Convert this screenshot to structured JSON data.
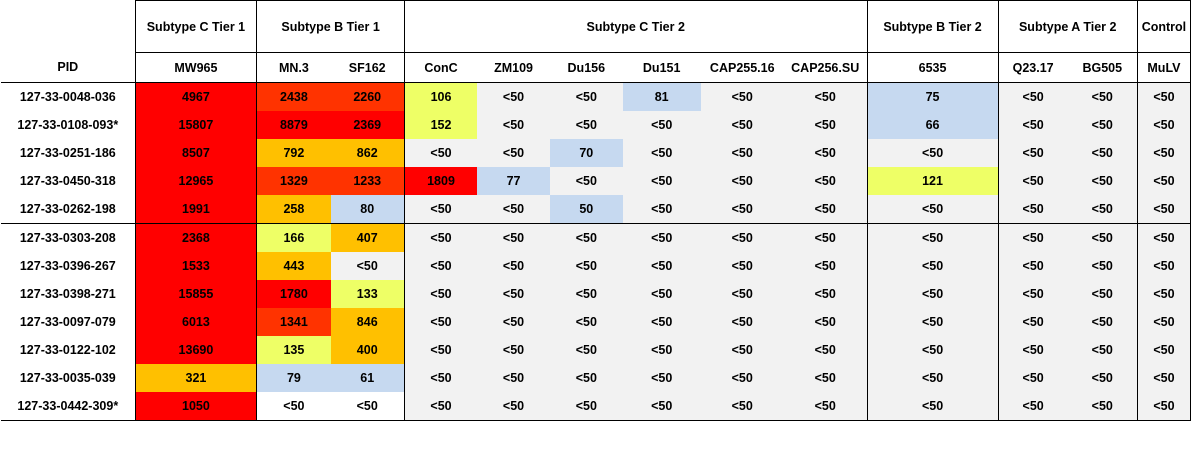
{
  "group_headers": {
    "pid": "",
    "c_tier1": "Subtype C Tier 1",
    "b_tier1": "Subtype B Tier 1",
    "c_tier2": "Subtype C Tier 2",
    "b_tier2": "Subtype B Tier 2",
    "a_tier2": "Subtype A Tier  2",
    "control": "Control"
  },
  "column_headers": [
    "PID",
    "MW965",
    "MN.3",
    "SF162",
    "ConC",
    "ZM109",
    "Du156",
    "Du151",
    "CAP255.16",
    "CAP256.SU",
    "6535",
    "Q23.17",
    "BG505",
    "MuLV"
  ],
  "colors": {
    "red": "#ff0000",
    "red_orange": "#ff3300",
    "orange": "#ffc000",
    "yellow": "#eeff66",
    "blue": "#c6d9f0",
    "grey": "#f2f2f2",
    "white": "#ffffff"
  },
  "rows": [
    {
      "pid": "127-33-0048-036",
      "cells": [
        "4967",
        "2438",
        "2260",
        "106",
        "<50",
        "<50",
        "81",
        "<50",
        "<50",
        "75",
        "<50",
        "<50",
        "<50"
      ],
      "colors": [
        "red",
        "red_orange",
        "red_orange",
        "yellow",
        "grey",
        "grey",
        "blue",
        "grey",
        "grey",
        "blue",
        "grey",
        "grey",
        "grey"
      ]
    },
    {
      "pid": "127-33-0108-093*",
      "cells": [
        "15807",
        "8879",
        "2369",
        "152",
        "<50",
        "<50",
        "<50",
        "<50",
        "<50",
        "66",
        "<50",
        "<50",
        "<50"
      ],
      "colors": [
        "red",
        "red",
        "red",
        "yellow",
        "grey",
        "grey",
        "grey",
        "grey",
        "grey",
        "blue",
        "grey",
        "grey",
        "grey"
      ]
    },
    {
      "pid": "127-33-0251-186",
      "cells": [
        "8507",
        "792",
        "862",
        "<50",
        "<50",
        "70",
        "<50",
        "<50",
        "<50",
        "<50",
        "<50",
        "<50",
        "<50"
      ],
      "colors": [
        "red",
        "orange",
        "orange",
        "grey",
        "grey",
        "blue",
        "grey",
        "grey",
        "grey",
        "grey",
        "grey",
        "grey",
        "grey"
      ]
    },
    {
      "pid": "127-33-0450-318",
      "cells": [
        "12965",
        "1329",
        "1233",
        "1809",
        "77",
        "<50",
        "<50",
        "<50",
        "<50",
        "121",
        "<50",
        "<50",
        "<50"
      ],
      "colors": [
        "red",
        "red_orange",
        "red_orange",
        "red",
        "blue",
        "grey",
        "grey",
        "grey",
        "grey",
        "yellow",
        "grey",
        "grey",
        "grey"
      ]
    },
    {
      "pid": "127-33-0262-198",
      "cells": [
        "1991",
        "258",
        "80",
        "<50",
        "<50",
        "50",
        "<50",
        "<50",
        "<50",
        "<50",
        "<50",
        "<50",
        "<50"
      ],
      "colors": [
        "red",
        "orange",
        "blue",
        "grey",
        "grey",
        "blue",
        "grey",
        "grey",
        "grey",
        "grey",
        "grey",
        "grey",
        "grey"
      ]
    },
    {
      "pid": "127-33-0303-208",
      "cells": [
        "2368",
        "166",
        "407",
        "<50",
        "<50",
        "<50",
        "<50",
        "<50",
        "<50",
        "<50",
        "<50",
        "<50",
        "<50"
      ],
      "colors": [
        "red",
        "yellow",
        "orange",
        "grey",
        "grey",
        "grey",
        "grey",
        "grey",
        "grey",
        "grey",
        "grey",
        "grey",
        "grey"
      ]
    },
    {
      "pid": "127-33-0396-267",
      "cells": [
        "1533",
        "443",
        "<50",
        "<50",
        "<50",
        "<50",
        "<50",
        "<50",
        "<50",
        "<50",
        "<50",
        "<50",
        "<50"
      ],
      "colors": [
        "red",
        "orange",
        "grey",
        "grey",
        "grey",
        "grey",
        "grey",
        "grey",
        "grey",
        "grey",
        "grey",
        "grey",
        "grey"
      ]
    },
    {
      "pid": "127-33-0398-271",
      "cells": [
        "15855",
        "1780",
        "133",
        "<50",
        "<50",
        "<50",
        "<50",
        "<50",
        "<50",
        "<50",
        "<50",
        "<50",
        "<50"
      ],
      "colors": [
        "red",
        "red",
        "yellow",
        "grey",
        "grey",
        "grey",
        "grey",
        "grey",
        "grey",
        "grey",
        "grey",
        "grey",
        "grey"
      ]
    },
    {
      "pid": "127-33-0097-079",
      "cells": [
        "6013",
        "1341",
        "846",
        "<50",
        "<50",
        "<50",
        "<50",
        "<50",
        "<50",
        "<50",
        "<50",
        "<50",
        "<50"
      ],
      "colors": [
        "red",
        "red_orange",
        "orange",
        "grey",
        "grey",
        "grey",
        "grey",
        "grey",
        "grey",
        "grey",
        "grey",
        "grey",
        "grey"
      ]
    },
    {
      "pid": "127-33-0122-102",
      "cells": [
        "13690",
        "135",
        "400",
        "<50",
        "<50",
        "<50",
        "<50",
        "<50",
        "<50",
        "<50",
        "<50",
        "<50",
        "<50"
      ],
      "colors": [
        "red",
        "yellow",
        "orange",
        "grey",
        "grey",
        "grey",
        "grey",
        "grey",
        "grey",
        "grey",
        "grey",
        "grey",
        "grey"
      ]
    },
    {
      "pid": "127-33-0035-039",
      "cells": [
        "321",
        "79",
        "61",
        "<50",
        "<50",
        "<50",
        "<50",
        "<50",
        "<50",
        "<50",
        "<50",
        "<50",
        "<50"
      ],
      "colors": [
        "orange",
        "blue",
        "blue",
        "grey",
        "grey",
        "grey",
        "grey",
        "grey",
        "grey",
        "grey",
        "grey",
        "grey",
        "grey"
      ]
    },
    {
      "pid": "127-33-0442-309*",
      "cells": [
        "1050",
        "<50",
        "<50",
        "<50",
        "<50",
        "<50",
        "<50",
        "<50",
        "<50",
        "<50",
        "<50",
        "<50",
        "<50"
      ],
      "colors": [
        "red",
        "white",
        "white",
        "grey",
        "grey",
        "grey",
        "grey",
        "grey",
        "grey",
        "grey",
        "grey",
        "grey",
        "grey"
      ]
    }
  ]
}
